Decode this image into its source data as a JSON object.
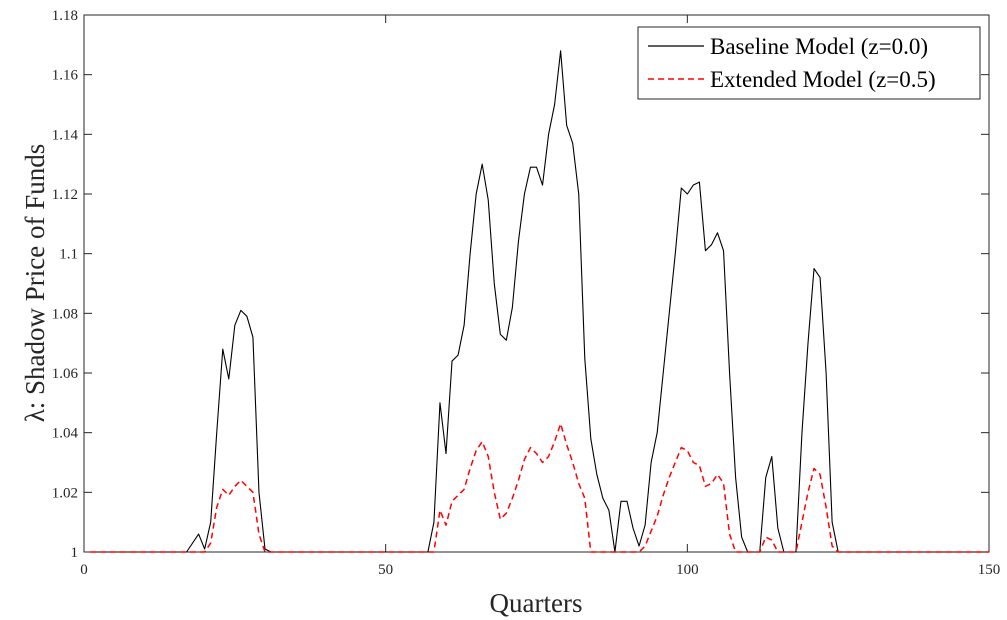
{
  "chart_data": {
    "type": "line",
    "title": "",
    "xlabel": "Quarters",
    "ylabel": "λ: Shadow Price of Funds",
    "xlim": [
      0,
      150
    ],
    "ylim": [
      1,
      1.18
    ],
    "xticks": [
      0,
      50,
      100,
      150
    ],
    "yticks": [
      1,
      1.02,
      1.04,
      1.06,
      1.08,
      1.1,
      1.12,
      1.14,
      1.16,
      1.18
    ],
    "ytick_labels": [
      "1",
      "1.02",
      "1.04",
      "1.06",
      "1.08",
      "1.1",
      "1.12",
      "1.14",
      "1.16",
      "1.18"
    ],
    "grid": false,
    "legend_position": "top-right",
    "series": [
      {
        "name": "Baseline Model (z=0.0)",
        "color": "#000000",
        "style": "solid",
        "points": [
          [
            1,
            1
          ],
          [
            17,
            1
          ],
          [
            19,
            1.006
          ],
          [
            20,
            1.001
          ],
          [
            21,
            1.01
          ],
          [
            22,
            1.04
          ],
          [
            23,
            1.068
          ],
          [
            24,
            1.058
          ],
          [
            25,
            1.076
          ],
          [
            26,
            1.081
          ],
          [
            27,
            1.079
          ],
          [
            28,
            1.072
          ],
          [
            29,
            1.02
          ],
          [
            30,
            1.001
          ],
          [
            31,
            1
          ],
          [
            57,
            1
          ],
          [
            58,
            1.01
          ],
          [
            59,
            1.05
          ],
          [
            60,
            1.033
          ],
          [
            61,
            1.064
          ],
          [
            62,
            1.066
          ],
          [
            63,
            1.076
          ],
          [
            64,
            1.1
          ],
          [
            65,
            1.12
          ],
          [
            66,
            1.13
          ],
          [
            67,
            1.118
          ],
          [
            68,
            1.09
          ],
          [
            69,
            1.073
          ],
          [
            70,
            1.071
          ],
          [
            71,
            1.082
          ],
          [
            72,
            1.104
          ],
          [
            73,
            1.12
          ],
          [
            74,
            1.129
          ],
          [
            75,
            1.129
          ],
          [
            76,
            1.123
          ],
          [
            77,
            1.14
          ],
          [
            78,
            1.15
          ],
          [
            79,
            1.168
          ],
          [
            80,
            1.143
          ],
          [
            81,
            1.137
          ],
          [
            82,
            1.12
          ],
          [
            83,
            1.065
          ],
          [
            84,
            1.038
          ],
          [
            85,
            1.026
          ],
          [
            86,
            1.018
          ],
          [
            87,
            1.014
          ],
          [
            88,
            1
          ],
          [
            89,
            1.017
          ],
          [
            90,
            1.017
          ],
          [
            91,
            1.008
          ],
          [
            92,
            1.002
          ],
          [
            93,
            1.009
          ],
          [
            94,
            1.03
          ],
          [
            95,
            1.04
          ],
          [
            96,
            1.06
          ],
          [
            97,
            1.08
          ],
          [
            98,
            1.1
          ],
          [
            99,
            1.122
          ],
          [
            100,
            1.12
          ],
          [
            101,
            1.123
          ],
          [
            102,
            1.124
          ],
          [
            103,
            1.101
          ],
          [
            104,
            1.103
          ],
          [
            105,
            1.107
          ],
          [
            106,
            1.101
          ],
          [
            107,
            1.06
          ],
          [
            108,
            1.025
          ],
          [
            109,
            1.005
          ],
          [
            110,
            1
          ],
          [
            112,
            1
          ],
          [
            113,
            1.025
          ],
          [
            114,
            1.032
          ],
          [
            115,
            1.008
          ],
          [
            116,
            1
          ],
          [
            118,
            1
          ],
          [
            119,
            1.04
          ],
          [
            120,
            1.07
          ],
          [
            121,
            1.095
          ],
          [
            122,
            1.092
          ],
          [
            123,
            1.06
          ],
          [
            124,
            1.01
          ],
          [
            125,
            1
          ],
          [
            150,
            1
          ]
        ]
      },
      {
        "name": "Extended Model (z=0.5)",
        "color": "#ff0000",
        "style": "dashed",
        "points": [
          [
            1,
            1
          ],
          [
            20,
            1
          ],
          [
            21,
            1.003
          ],
          [
            22,
            1.015
          ],
          [
            23,
            1.021
          ],
          [
            24,
            1.019
          ],
          [
            25,
            1.022
          ],
          [
            26,
            1.024
          ],
          [
            27,
            1.022
          ],
          [
            28,
            1.02
          ],
          [
            29,
            1.006
          ],
          [
            30,
            1
          ],
          [
            58,
            1
          ],
          [
            59,
            1.014
          ],
          [
            60,
            1.009
          ],
          [
            61,
            1.017
          ],
          [
            62,
            1.019
          ],
          [
            63,
            1.021
          ],
          [
            64,
            1.028
          ],
          [
            65,
            1.034
          ],
          [
            66,
            1.037
          ],
          [
            67,
            1.032
          ],
          [
            68,
            1.02
          ],
          [
            69,
            1.011
          ],
          [
            70,
            1.013
          ],
          [
            71,
            1.018
          ],
          [
            72,
            1.024
          ],
          [
            73,
            1.031
          ],
          [
            74,
            1.035
          ],
          [
            75,
            1.033
          ],
          [
            76,
            1.03
          ],
          [
            77,
            1.032
          ],
          [
            78,
            1.037
          ],
          [
            79,
            1.043
          ],
          [
            80,
            1.036
          ],
          [
            81,
            1.03
          ],
          [
            82,
            1.023
          ],
          [
            83,
            1.018
          ],
          [
            84,
            1
          ],
          [
            92,
            1
          ],
          [
            93,
            1.002
          ],
          [
            94,
            1.007
          ],
          [
            95,
            1.012
          ],
          [
            96,
            1.019
          ],
          [
            97,
            1.025
          ],
          [
            98,
            1.03
          ],
          [
            99,
            1.035
          ],
          [
            100,
            1.034
          ],
          [
            101,
            1.03
          ],
          [
            102,
            1.029
          ],
          [
            103,
            1.022
          ],
          [
            104,
            1.023
          ],
          [
            105,
            1.026
          ],
          [
            106,
            1.023
          ],
          [
            107,
            1.006
          ],
          [
            108,
            1
          ],
          [
            112,
            1
          ],
          [
            113,
            1.005
          ],
          [
            114,
            1.004
          ],
          [
            115,
            1
          ],
          [
            118,
            1
          ],
          [
            119,
            1.01
          ],
          [
            120,
            1.02
          ],
          [
            121,
            1.028
          ],
          [
            122,
            1.026
          ],
          [
            123,
            1.015
          ],
          [
            124,
            1.002
          ],
          [
            125,
            1
          ],
          [
            150,
            1
          ]
        ]
      }
    ]
  }
}
